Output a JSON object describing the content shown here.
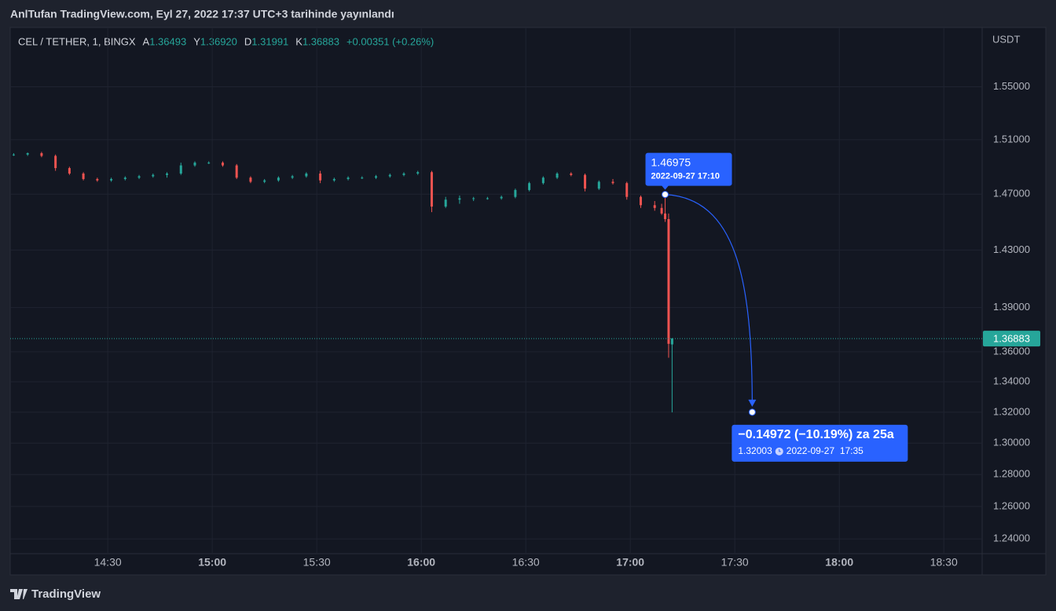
{
  "header": {
    "title": "AnlTufan TradingView.com, Eyl 27, 2022 17:37 UTC+3 tarihinde yayınlandı"
  },
  "chart_data": {
    "type": "candlestick",
    "symbol": "CEL / TETHER, 1, BINGX",
    "ohlc": [
      {
        "label": "A",
        "value": "1.36493"
      },
      {
        "label": "Y",
        "value": "1.36920"
      },
      {
        "label": "D",
        "value": "1.31991"
      },
      {
        "label": "K",
        "value": "1.36883"
      }
    ],
    "change": "+0.00351 (+0.26%)",
    "currency": "USDT",
    "log_scale": true,
    "grid": true,
    "up_color": "#26a69a",
    "down_color": "#ef5350",
    "x": [
      "14:03",
      "14:07",
      "14:11",
      "14:15",
      "14:19",
      "14:23",
      "14:27",
      "14:31",
      "14:35",
      "14:39",
      "14:43",
      "14:47",
      "14:51",
      "14:55",
      "14:59",
      "15:03",
      "15:07",
      "15:11",
      "15:15",
      "15:19",
      "15:23",
      "15:27",
      "15:31",
      "15:35",
      "15:39",
      "15:43",
      "15:47",
      "15:51",
      "15:55",
      "15:59",
      "16:03",
      "16:07",
      "16:11",
      "16:15",
      "16:19",
      "16:23",
      "16:27",
      "16:31",
      "16:35",
      "16:39",
      "16:43",
      "16:47",
      "16:51",
      "16:55",
      "16:59",
      "17:03",
      "17:07",
      "17:09",
      "17:10",
      "17:11",
      "17:12"
    ],
    "open": [
      1.499,
      1.499,
      1.5,
      1.498,
      1.489,
      1.485,
      1.481,
      1.48,
      1.481,
      1.482,
      1.483,
      1.484,
      1.485,
      1.491,
      1.493,
      1.493,
      1.491,
      1.482,
      1.479,
      1.48,
      1.482,
      1.483,
      1.485,
      1.48,
      1.481,
      1.482,
      1.482,
      1.483,
      1.484,
      1.485,
      1.486,
      1.461,
      1.466,
      1.467,
      1.467,
      1.467,
      1.468,
      1.473,
      1.478,
      1.482,
      1.485,
      1.484,
      1.474,
      1.479,
      1.478,
      1.468,
      1.462,
      1.46,
      1.456,
      1.452,
      1.36493
    ],
    "high": [
      1.5,
      1.5005,
      1.501,
      1.499,
      1.49,
      1.486,
      1.482,
      1.482,
      1.483,
      1.484,
      1.485,
      1.486,
      1.493,
      1.494,
      1.494,
      1.494,
      1.492,
      1.483,
      1.481,
      1.483,
      1.484,
      1.486,
      1.487,
      1.482,
      1.483,
      1.483,
      1.484,
      1.485,
      1.486,
      1.487,
      1.487,
      1.468,
      1.469,
      1.468,
      1.468,
      1.469,
      1.474,
      1.479,
      1.483,
      1.486,
      1.486,
      1.485,
      1.48,
      1.481,
      1.479,
      1.469,
      1.465,
      1.463,
      1.46975,
      1.456,
      1.3692
    ],
    "low": [
      1.498,
      1.498,
      1.497,
      1.487,
      1.484,
      1.48,
      1.479,
      1.479,
      1.48,
      1.481,
      1.482,
      1.482,
      1.484,
      1.49,
      1.492,
      1.49,
      1.481,
      1.478,
      1.478,
      1.479,
      1.481,
      1.482,
      1.478,
      1.479,
      1.48,
      1.481,
      1.481,
      1.482,
      1.483,
      1.484,
      1.457,
      1.46,
      1.463,
      1.465,
      1.466,
      1.466,
      1.467,
      1.472,
      1.477,
      1.481,
      1.483,
      1.472,
      1.473,
      1.477,
      1.466,
      1.46,
      1.458,
      1.455,
      1.45,
      1.356,
      1.31991
    ],
    "close": [
      1.499,
      1.5,
      1.498,
      1.489,
      1.485,
      1.481,
      1.48,
      1.481,
      1.482,
      1.483,
      1.484,
      1.485,
      1.491,
      1.493,
      1.493,
      1.491,
      1.482,
      1.479,
      1.48,
      1.482,
      1.483,
      1.485,
      1.48,
      1.481,
      1.482,
      1.482,
      1.483,
      1.484,
      1.485,
      1.486,
      1.461,
      1.466,
      1.467,
      1.467,
      1.467,
      1.468,
      1.473,
      1.478,
      1.482,
      1.485,
      1.484,
      1.474,
      1.479,
      1.478,
      1.468,
      1.462,
      1.46,
      1.456,
      1.452,
      1.36532,
      1.36883
    ],
    "xlim": [
      "14:02",
      "18:41"
    ],
    "xticks": [
      "14:30",
      "15:00",
      "15:30",
      "16:00",
      "16:30",
      "17:00",
      "17:30",
      "18:00",
      "18:30"
    ],
    "ylim": [
      1.231,
      1.596
    ],
    "yticks": [
      {
        "value": 1.55,
        "label": "1.55000"
      },
      {
        "value": 1.51,
        "label": "1.51000"
      },
      {
        "value": 1.47,
        "label": "1.47000"
      },
      {
        "value": 1.43,
        "label": "1.43000"
      },
      {
        "value": 1.39,
        "label": "1.39000"
      },
      {
        "value": 1.36,
        "label": "1.36000"
      },
      {
        "value": 1.34,
        "label": "1.34000"
      },
      {
        "value": 1.32,
        "label": "1.32000"
      },
      {
        "value": 1.3,
        "label": "1.30000"
      },
      {
        "value": 1.28,
        "label": "1.28000"
      },
      {
        "value": 1.26,
        "label": "1.26000"
      },
      {
        "value": 1.24,
        "label": "1.24000"
      }
    ],
    "last_price": 1.36883,
    "annotation": {
      "color": "#2962ff",
      "start": {
        "x": "17:10",
        "value": 1.46975,
        "time_label": "2022-09-27 17:10"
      },
      "end": {
        "x": "17:35",
        "value": 1.32003,
        "time_label": "2022-09-27  17:35"
      },
      "change_label": "−0.14972 (−10.19%) za 25a"
    }
  },
  "footer": {
    "logo": "TradingView"
  }
}
